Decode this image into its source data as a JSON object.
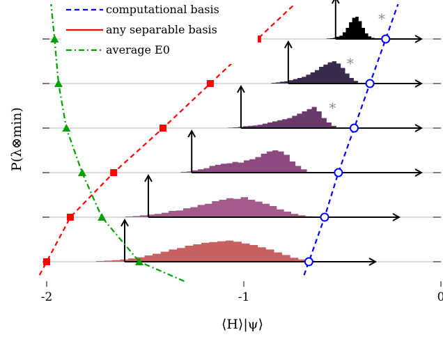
{
  "chart_data": {
    "type": "line",
    "xlabel": "⟨H⟩|ψ⟩",
    "ylabel": "P(λ⊗min)",
    "xlim": [
      -2,
      0
    ],
    "x_ticks": [
      {
        "value": -2,
        "label": "-2"
      },
      {
        "value": -1,
        "label": "-1"
      },
      {
        "value": 0,
        "label": "0"
      }
    ],
    "legend": {
      "position": "top-left"
    },
    "series": [
      {
        "name": "computational basis",
        "color": "#0000ff",
        "line": "dashed",
        "marker": "circle",
        "points": [
          [
            -0.67,
            0
          ],
          [
            -0.59,
            1
          ],
          [
            -0.52,
            2
          ],
          [
            -0.44,
            3
          ],
          [
            -0.36,
            4
          ],
          [
            -0.28,
            5
          ]
        ]
      },
      {
        "name": "any separable basis",
        "color": "#ff0000",
        "line": "dashed",
        "marker": "square",
        "points": [
          [
            -2.0,
            0
          ],
          [
            -1.88,
            1
          ],
          [
            -1.66,
            2
          ],
          [
            -1.41,
            3
          ],
          [
            -1.17,
            4
          ],
          [
            -0.93,
            5
          ]
        ]
      },
      {
        "name": "average E0",
        "color": "#00a000",
        "line": "dash-dot",
        "marker": "triangle",
        "points": [
          [
            -1.53,
            0
          ],
          [
            -1.72,
            1
          ],
          [
            -1.82,
            2
          ],
          [
            -1.9,
            3
          ],
          [
            -1.94,
            4
          ],
          [
            -1.96,
            5
          ]
        ]
      }
    ],
    "histograms": [
      {
        "row": 0,
        "color": "#c8605f",
        "x_range": [
          -1.75,
          -0.6
        ],
        "shape": [
          0.03,
          0.05,
          0.07,
          0.1,
          0.15,
          0.2,
          0.28,
          0.36,
          0.45,
          0.55,
          0.62,
          0.72,
          0.78,
          0.85,
          0.88,
          0.92,
          0.95,
          0.9,
          0.82,
          0.75,
          0.65,
          0.55,
          0.42,
          0.3,
          0.18,
          0.1,
          0.05,
          0.02
        ]
      },
      {
        "row": 1,
        "color": "#a45a8b",
        "x_range": [
          -1.6,
          -0.65
        ],
        "shape": [
          0.03,
          0.05,
          0.08,
          0.12,
          0.15,
          0.2,
          0.28,
          0.3,
          0.4,
          0.45,
          0.55,
          0.6,
          0.72,
          0.78,
          0.85,
          0.82,
          0.9,
          0.78,
          0.7,
          0.6,
          0.5,
          0.35,
          0.25,
          0.15,
          0.08,
          0.04
        ]
      },
      {
        "row": 2,
        "color": "#8c4a80",
        "x_range": [
          -1.32,
          -0.68
        ],
        "shape": [
          0.03,
          0.05,
          0.1,
          0.15,
          0.2,
          0.3,
          0.35,
          0.4,
          0.42,
          0.48,
          0.45,
          0.55,
          0.6,
          0.7,
          0.85,
          0.95,
          1.0,
          0.95,
          0.8,
          0.5,
          0.3,
          0.15
        ]
      },
      {
        "row": 3,
        "color": "#6a3a6f",
        "x_range": [
          -1.08,
          -0.53
        ],
        "shape": [
          0.02,
          0.03,
          0.05,
          0.08,
          0.1,
          0.12,
          0.15,
          0.2,
          0.25,
          0.3,
          0.35,
          0.4,
          0.45,
          0.55,
          0.65,
          0.75,
          0.85,
          0.95,
          0.75,
          0.45,
          0.25,
          0.1
        ]
      },
      {
        "row": 4,
        "color": "#3a2a4d",
        "x_range": [
          -0.86,
          -0.42
        ],
        "shape": [
          0.03,
          0.05,
          0.08,
          0.1,
          0.15,
          0.2,
          0.25,
          0.3,
          0.4,
          0.5,
          0.6,
          0.75,
          0.85,
          0.95,
          1.0,
          0.9,
          0.7,
          0.45,
          0.25,
          0.12
        ]
      },
      {
        "row": 5,
        "color": "#000000",
        "x_range": [
          -0.58,
          -0.32
        ],
        "shape": [
          0.02,
          0.03,
          0.05,
          0.1,
          0.15,
          0.3,
          0.5,
          0.75,
          0.95,
          1.0,
          0.8,
          0.5,
          0.25,
          0.12,
          0.05,
          0.02
        ]
      }
    ],
    "annotations": [
      {
        "text": "*",
        "row": 3,
        "x": -0.55
      },
      {
        "text": "*",
        "row": 4,
        "x": -0.46
      },
      {
        "text": "*",
        "row": 5,
        "x": -0.3
      }
    ]
  }
}
